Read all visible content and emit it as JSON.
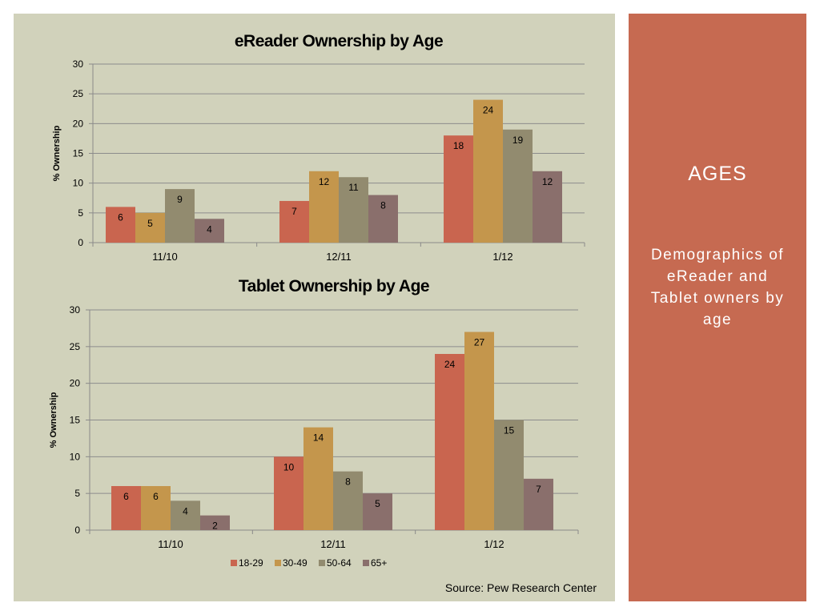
{
  "sidebar": {
    "title": "AGES",
    "subtitle": "Demographics of eReader and Tablet owners by age"
  },
  "source": "Source: Pew Research Center",
  "colors": {
    "18-29": "#c9654f",
    "30-49": "#c4964c",
    "50-64": "#928b6f",
    "65+": "#8a6f6c",
    "panel_left": "#d1d2bb",
    "panel_right": "#c66a51"
  },
  "chart_data": [
    {
      "type": "bar",
      "title": "eReader Ownership by Age",
      "ylabel": "% Ownership",
      "xlabel": "",
      "ylim": [
        0,
        30
      ],
      "yticks": [
        0,
        5,
        10,
        15,
        20,
        25,
        30
      ],
      "grid": true,
      "categories": [
        "11/10",
        "12/11",
        "1/12"
      ],
      "series": [
        {
          "name": "18-29",
          "values": [
            6,
            7,
            18
          ]
        },
        {
          "name": "30-49",
          "values": [
            5,
            12,
            24
          ]
        },
        {
          "name": "50-64",
          "values": [
            9,
            11,
            19
          ]
        },
        {
          "name": "65+",
          "values": [
            4,
            8,
            12
          ]
        }
      ]
    },
    {
      "type": "bar",
      "title": "Tablet Ownership by Age",
      "ylabel": "% Ownership",
      "xlabel": "",
      "ylim": [
        0,
        30
      ],
      "yticks": [
        0,
        5,
        10,
        15,
        20,
        25,
        30
      ],
      "grid": true,
      "legend": "bottom",
      "categories": [
        "11/10",
        "12/11",
        "1/12"
      ],
      "series": [
        {
          "name": "18-29",
          "values": [
            6,
            10,
            24
          ]
        },
        {
          "name": "30-49",
          "values": [
            6,
            14,
            27
          ]
        },
        {
          "name": "50-64",
          "values": [
            4,
            8,
            15
          ]
        },
        {
          "name": "65+",
          "values": [
            2,
            5,
            7
          ]
        }
      ]
    }
  ]
}
